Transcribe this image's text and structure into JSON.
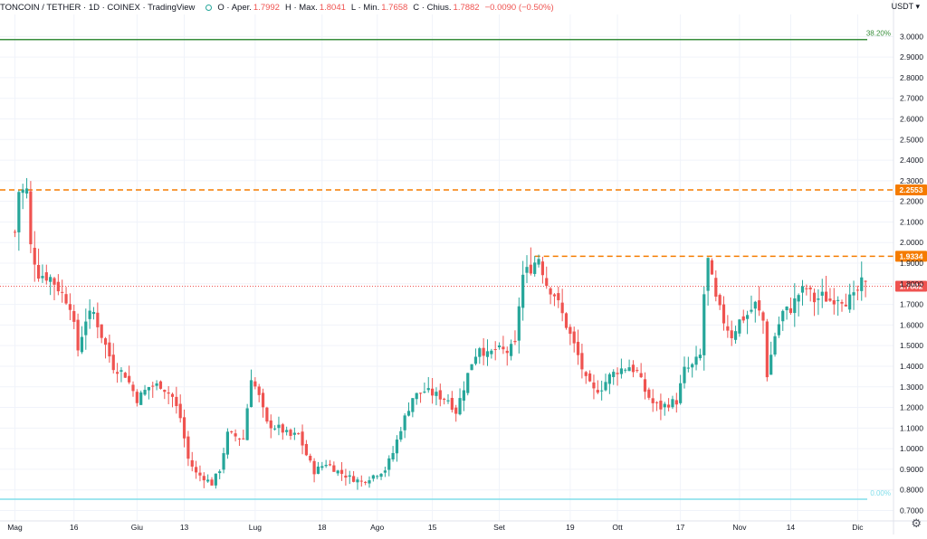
{
  "header": {
    "symbol": "TONCOIN / TETHER · 1D · COINEX · TradingView",
    "open_label": "O · Aper.",
    "open_value": "1.7992",
    "high_label": "H · Max.",
    "high_value": "1.8041",
    "low_label": "L · Min.",
    "low_value": "1.7658",
    "close_label": "C · Chius.",
    "close_value": "1.7882",
    "change_value": "−0.0090 (−0.50%)"
  },
  "price_axis": {
    "currency": "USDT",
    "min": 0.65,
    "max": 3.05,
    "ticks": [
      "3.0000",
      "2.9000",
      "2.8000",
      "2.7000",
      "2.6000",
      "2.5000",
      "2.4000",
      "2.3000",
      "2.2000",
      "2.1000",
      "2.0000",
      "1.9000",
      "1.8000",
      "1.7000",
      "1.6000",
      "1.5000",
      "1.4000",
      "1.3000",
      "1.2000",
      "1.1000",
      "1.0000",
      "0.9000",
      "0.8000",
      "0.7000"
    ]
  },
  "time_axis": {
    "labels": [
      {
        "text": "Mag",
        "day": 0
      },
      {
        "text": "16",
        "day": 15
      },
      {
        "text": "Giu",
        "day": 31
      },
      {
        "text": "13",
        "day": 43
      },
      {
        "text": "Lug",
        "day": 61
      },
      {
        "text": "18",
        "day": 78
      },
      {
        "text": "Ago",
        "day": 92
      },
      {
        "text": "15",
        "day": 106
      },
      {
        "text": "Set",
        "day": 123
      },
      {
        "text": "19",
        "day": 141
      },
      {
        "text": "Ott",
        "day": 153
      },
      {
        "text": "17",
        "day": 169
      },
      {
        "text": "Nov",
        "day": 184
      },
      {
        "text": "14",
        "day": 197
      },
      {
        "text": "Dic",
        "day": 214
      }
    ]
  },
  "levels": [
    {
      "name": "fib-38",
      "price": 2.985,
      "color": "#388e3c",
      "label": "38.20%",
      "style": "solid",
      "badge": false
    },
    {
      "name": "resistance-high",
      "price": 2.2553,
      "color": "#f57c00",
      "label": "2.2553",
      "style": "dashed",
      "badge": true
    },
    {
      "name": "resistance-mid",
      "price": 1.9334,
      "color": "#f57c00",
      "label": "1.9334",
      "style": "dashed",
      "badge": true,
      "start_day": 132
    },
    {
      "name": "fib-0",
      "price": 0.755,
      "color": "#80deea",
      "label": "0.00%",
      "style": "solid",
      "badge": false
    },
    {
      "name": "last-price",
      "price": 1.7882,
      "color": "#ef5350",
      "label": "1.7882",
      "style": "dotted",
      "badge": true
    }
  ],
  "colors": {
    "up": "#26a69a",
    "down": "#ef5350",
    "grid": "#f0f3fa",
    "text": "#131722"
  },
  "chart_data": {
    "type": "candlestick",
    "title": "TONCOIN / TETHER · 1D · COINEX",
    "ylabel": "USDT",
    "ylim": [
      0.65,
      3.05
    ],
    "anchors": [
      {
        "day": 0,
        "price": 2.05
      },
      {
        "day": 1,
        "price": 2.25
      },
      {
        "day": 3,
        "price": 2.25
      },
      {
        "day": 4,
        "price": 1.98
      },
      {
        "day": 6,
        "price": 1.85
      },
      {
        "day": 9,
        "price": 1.83
      },
      {
        "day": 11,
        "price": 1.78
      },
      {
        "day": 14,
        "price": 1.7
      },
      {
        "day": 16,
        "price": 1.48
      },
      {
        "day": 18,
        "price": 1.63
      },
      {
        "day": 20,
        "price": 1.66
      },
      {
        "day": 22,
        "price": 1.55
      },
      {
        "day": 25,
        "price": 1.4
      },
      {
        "day": 28,
        "price": 1.36
      },
      {
        "day": 31,
        "price": 1.24
      },
      {
        "day": 34,
        "price": 1.3
      },
      {
        "day": 37,
        "price": 1.31
      },
      {
        "day": 40,
        "price": 1.25
      },
      {
        "day": 42,
        "price": 1.15
      },
      {
        "day": 44,
        "price": 0.95
      },
      {
        "day": 46,
        "price": 0.88
      },
      {
        "day": 48,
        "price": 0.86
      },
      {
        "day": 50,
        "price": 0.83
      },
      {
        "day": 52,
        "price": 0.9
      },
      {
        "day": 54,
        "price": 1.07
      },
      {
        "day": 58,
        "price": 1.05
      },
      {
        "day": 60,
        "price": 1.35
      },
      {
        "day": 62,
        "price": 1.25
      },
      {
        "day": 64,
        "price": 1.12
      },
      {
        "day": 67,
        "price": 1.1
      },
      {
        "day": 70,
        "price": 1.06
      },
      {
        "day": 72,
        "price": 1.07
      },
      {
        "day": 74,
        "price": 0.97
      },
      {
        "day": 76,
        "price": 0.89
      },
      {
        "day": 79,
        "price": 0.93
      },
      {
        "day": 82,
        "price": 0.89
      },
      {
        "day": 85,
        "price": 0.86
      },
      {
        "day": 88,
        "price": 0.84
      },
      {
        "day": 91,
        "price": 0.87
      },
      {
        "day": 94,
        "price": 0.9
      },
      {
        "day": 96,
        "price": 0.98
      },
      {
        "day": 98,
        "price": 1.1
      },
      {
        "day": 101,
        "price": 1.25
      },
      {
        "day": 104,
        "price": 1.28
      },
      {
        "day": 107,
        "price": 1.26
      },
      {
        "day": 110,
        "price": 1.24
      },
      {
        "day": 112,
        "price": 1.18
      },
      {
        "day": 114,
        "price": 1.3
      },
      {
        "day": 116,
        "price": 1.42
      },
      {
        "day": 118,
        "price": 1.5
      },
      {
        "day": 120,
        "price": 1.45
      },
      {
        "day": 122,
        "price": 1.48
      },
      {
        "day": 125,
        "price": 1.47
      },
      {
        "day": 127,
        "price": 1.5
      },
      {
        "day": 128,
        "price": 1.7
      },
      {
        "day": 129,
        "price": 1.84
      },
      {
        "day": 131,
        "price": 1.88
      },
      {
        "day": 133,
        "price": 1.93
      },
      {
        "day": 135,
        "price": 1.8
      },
      {
        "day": 137,
        "price": 1.75
      },
      {
        "day": 139,
        "price": 1.65
      },
      {
        "day": 141,
        "price": 1.55
      },
      {
        "day": 143,
        "price": 1.45
      },
      {
        "day": 145,
        "price": 1.33
      },
      {
        "day": 147,
        "price": 1.28
      },
      {
        "day": 149,
        "price": 1.3
      },
      {
        "day": 151,
        "price": 1.35
      },
      {
        "day": 153,
        "price": 1.38
      },
      {
        "day": 156,
        "price": 1.4
      },
      {
        "day": 158,
        "price": 1.37
      },
      {
        "day": 160,
        "price": 1.28
      },
      {
        "day": 162,
        "price": 1.22
      },
      {
        "day": 164,
        "price": 1.2
      },
      {
        "day": 166,
        "price": 1.22
      },
      {
        "day": 168,
        "price": 1.23
      },
      {
        "day": 170,
        "price": 1.38
      },
      {
        "day": 172,
        "price": 1.4
      },
      {
        "day": 174,
        "price": 1.45
      },
      {
        "day": 175,
        "price": 1.75
      },
      {
        "day": 176,
        "price": 1.91
      },
      {
        "day": 178,
        "price": 1.72
      },
      {
        "day": 180,
        "price": 1.62
      },
      {
        "day": 182,
        "price": 1.55
      },
      {
        "day": 184,
        "price": 1.62
      },
      {
        "day": 186,
        "price": 1.65
      },
      {
        "day": 188,
        "price": 1.7
      },
      {
        "day": 190,
        "price": 1.62
      },
      {
        "day": 191,
        "price": 1.36
      },
      {
        "day": 193,
        "price": 1.55
      },
      {
        "day": 195,
        "price": 1.66
      },
      {
        "day": 197,
        "price": 1.68
      },
      {
        "day": 199,
        "price": 1.75
      },
      {
        "day": 201,
        "price": 1.78
      },
      {
        "day": 203,
        "price": 1.72
      },
      {
        "day": 205,
        "price": 1.74
      },
      {
        "day": 207,
        "price": 1.72
      },
      {
        "day": 209,
        "price": 1.74
      },
      {
        "day": 211,
        "price": 1.72
      },
      {
        "day": 213,
        "price": 1.73
      },
      {
        "day": 215,
        "price": 1.8
      },
      {
        "day": 216,
        "price": 1.7882
      }
    ]
  }
}
